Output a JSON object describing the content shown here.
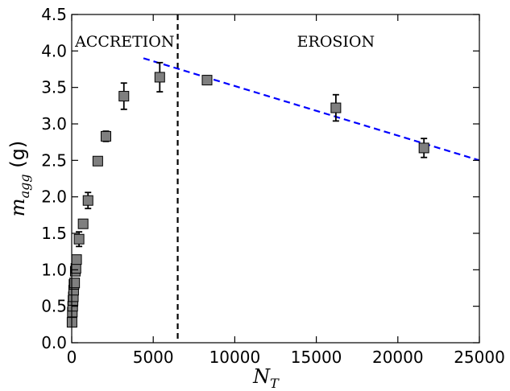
{
  "chart_data": {
    "type": "scatter",
    "title": "",
    "xlabel": {
      "main": "N",
      "sub": "T"
    },
    "ylabel": {
      "main": "m",
      "sub": "agg",
      "unit": "(g)"
    },
    "xlim": [
      0,
      25000
    ],
    "ylim": [
      0.0,
      4.5
    ],
    "x_ticks": [
      0,
      5000,
      10000,
      15000,
      20000,
      25000
    ],
    "x_tick_labels": [
      "0",
      "5000",
      "10000",
      "15000",
      "20000",
      "25000"
    ],
    "y_ticks": [
      0.0,
      0.5,
      1.0,
      1.5,
      2.0,
      2.5,
      3.0,
      3.5,
      4.0,
      4.5
    ],
    "y_tick_labels": [
      "0.0",
      "0.5",
      "1.0",
      "1.5",
      "2.0",
      "2.5",
      "3.0",
      "3.5",
      "4.0",
      "4.5"
    ],
    "grid": false,
    "series": [
      {
        "marker": "square",
        "color": "#7f7f7f",
        "edge_color": "#000000",
        "points": [
          {
            "x": 20,
            "y": 0.28,
            "err": 0.03
          },
          {
            "x": 40,
            "y": 0.42,
            "err": 0.03
          },
          {
            "x": 60,
            "y": 0.5,
            "err": 0.03
          },
          {
            "x": 80,
            "y": 0.58,
            "err": 0.03
          },
          {
            "x": 100,
            "y": 0.63,
            "err": 0.03
          },
          {
            "x": 120,
            "y": 0.72,
            "err": 0.03
          },
          {
            "x": 140,
            "y": 0.8,
            "err": 0.04
          },
          {
            "x": 180,
            "y": 0.82,
            "err": 0.04
          },
          {
            "x": 220,
            "y": 0.98,
            "err": 0.05
          },
          {
            "x": 260,
            "y": 1.02,
            "err": 0.05
          },
          {
            "x": 300,
            "y": 1.14,
            "err": 0.05
          },
          {
            "x": 450,
            "y": 1.42,
            "err": 0.1
          },
          {
            "x": 700,
            "y": 1.63,
            "err": 0.05
          },
          {
            "x": 1000,
            "y": 1.95,
            "err": 0.11
          },
          {
            "x": 1600,
            "y": 2.49,
            "err": 0.05
          },
          {
            "x": 2100,
            "y": 2.83,
            "err": 0.07
          },
          {
            "x": 3200,
            "y": 3.38,
            "err": 0.18
          },
          {
            "x": 5400,
            "y": 3.64,
            "err": 0.2
          },
          {
            "x": 8300,
            "y": 3.6,
            "err": 0.06
          },
          {
            "x": 16200,
            "y": 3.22,
            "err": 0.18
          },
          {
            "x": 21600,
            "y": 2.67,
            "err": 0.13
          }
        ]
      }
    ],
    "fit_line": {
      "style": "dashed",
      "color": "#0000ff",
      "x": [
        4400,
        25000
      ],
      "y": [
        3.9,
        2.5
      ]
    },
    "vline": {
      "style": "dashed",
      "color": "#000000",
      "x": 6500
    },
    "annotations": [
      {
        "text": "ACCRETION",
        "x": 3250,
        "y": 4.06
      },
      {
        "text": "EROSION",
        "x": 16200,
        "y": 4.06
      }
    ]
  }
}
